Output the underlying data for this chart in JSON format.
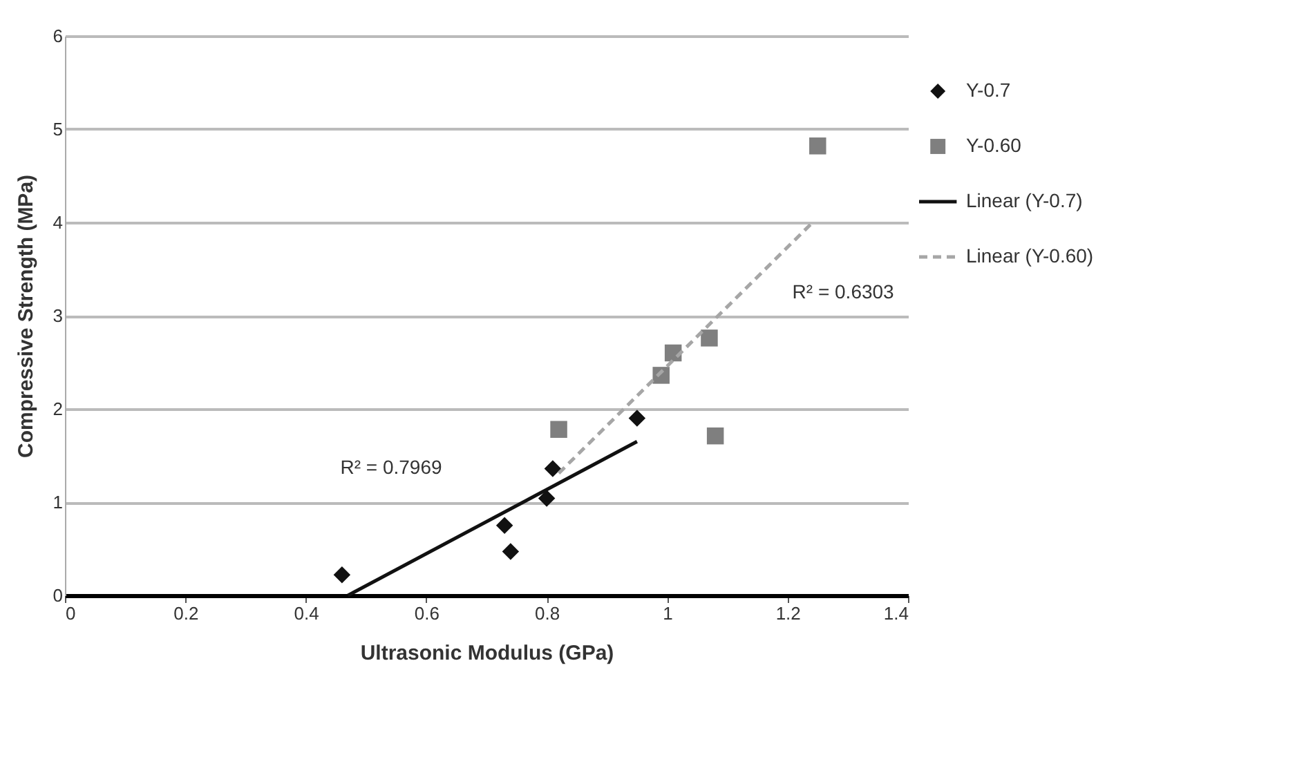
{
  "chart_data": {
    "type": "scatter",
    "xlabel": "Ultrasonic Modulus (GPa)",
    "ylabel": "Compressive Strength (MPa)",
    "xlim": [
      0,
      1.4
    ],
    "xticks": [
      0,
      0.2,
      0.4,
      0.6,
      0.8,
      1,
      1.2,
      1.4
    ],
    "ylim": [
      0,
      6
    ],
    "yticks": [
      0,
      1,
      2,
      3,
      4,
      5,
      6
    ],
    "grid": "y",
    "legend": "right",
    "series": [
      {
        "name": "Y-0.7",
        "type": "scatter",
        "marker": "diamond",
        "color": "#111111",
        "x": [
          0.46,
          0.73,
          0.74,
          0.8,
          0.81,
          0.95
        ],
        "values": [
          0.22,
          0.75,
          0.47,
          1.04,
          1.36,
          1.9
        ]
      },
      {
        "name": "Y-0.60",
        "type": "scatter",
        "marker": "square",
        "color": "#7f7f7f",
        "x": [
          0.82,
          0.99,
          1.01,
          1.07,
          1.08,
          1.25
        ],
        "values": [
          1.78,
          2.36,
          2.6,
          2.76,
          1.71,
          4.82
        ]
      },
      {
        "name": "Linear (Y-0.7)",
        "type": "line",
        "line_style": "solid",
        "marker": "none",
        "color": "#111111",
        "x": [
          0.47,
          0.95
        ],
        "values": [
          0,
          1.65
        ]
      },
      {
        "name": "Linear (Y-0.60)",
        "type": "line",
        "line_style": "dashed",
        "marker": "none",
        "color": "#a6a6a6",
        "x": [
          0.82,
          1.24
        ],
        "values": [
          1.31,
          3.99
        ]
      }
    ],
    "annotations": [
      "R² = 0.7969",
      {
        "text": "R² = 0.6303",
        "x": 1.15,
        "y": 3.42
      }
    ]
  }
}
